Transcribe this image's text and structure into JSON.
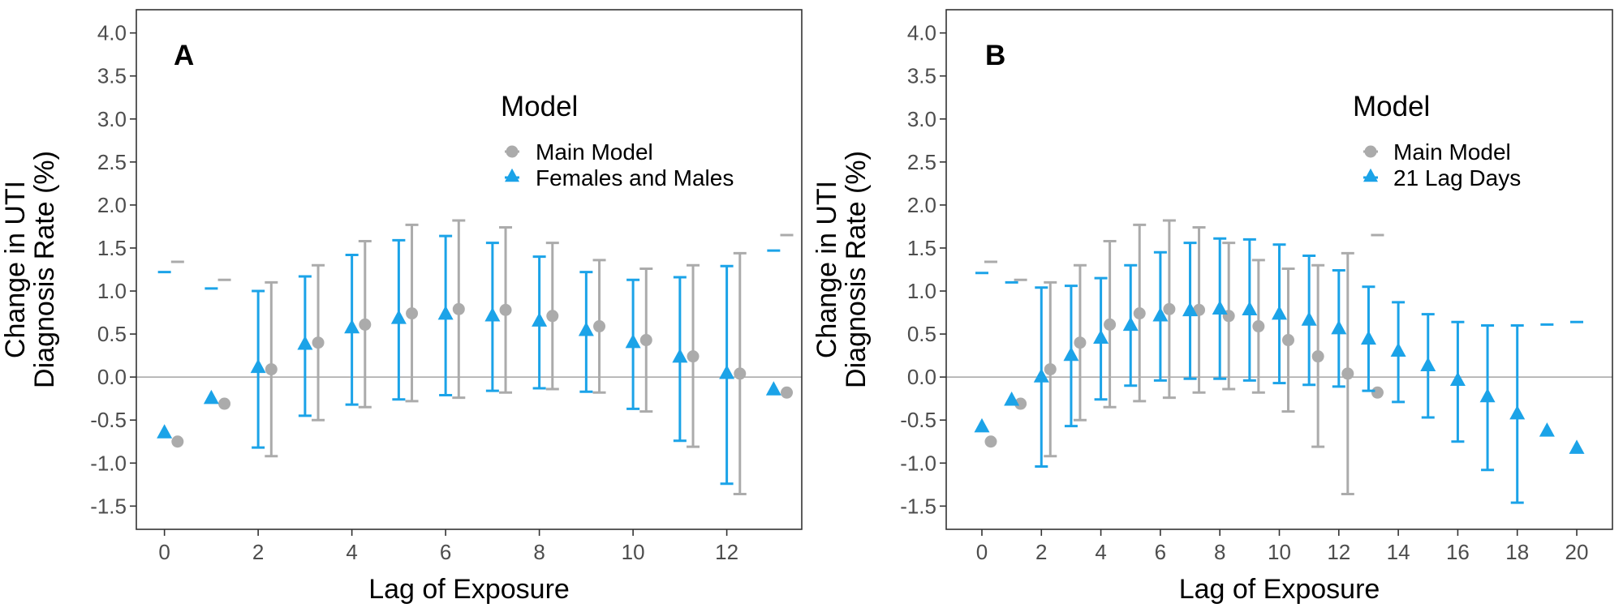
{
  "colors": {
    "main": "#ababab",
    "alt": "#1ba3e8",
    "axis": "#333333",
    "zero_line": "#ababab",
    "text": "#000000",
    "tick_text": "#4d4d4d"
  },
  "chart_data": [
    {
      "type": "scatter",
      "panel_label": "A",
      "xlabel": "Lag of Exposure",
      "ylabel": [
        "Change in UTI",
        "Diagnosis Rate (%)"
      ],
      "xlim": [
        -0.6,
        13.6
      ],
      "ylim": [
        -1.77,
        4.27
      ],
      "x_ticks": [
        0,
        2,
        4,
        6,
        8,
        10,
        12
      ],
      "y_ticks": [
        -1.5,
        -1.0,
        -0.5,
        0.0,
        0.5,
        1.0,
        1.5,
        2.0,
        2.5,
        3.0,
        3.5,
        4.0
      ],
      "y_tick_labels": [
        "-1.5",
        "-1.0",
        "-0.5",
        "0.0",
        "0.5",
        "1.0",
        "1.5",
        "2.0",
        "2.5",
        "3.0",
        "3.5",
        "4.0"
      ],
      "grid": false,
      "zero_line": true,
      "legend": {
        "title": "Model",
        "placement": "top-right",
        "entries": [
          "Main Model",
          "Females and Males"
        ]
      },
      "series": [
        {
          "name": "Main Model",
          "marker": "circle",
          "offset": 0.28,
          "x": [
            0,
            1,
            2,
            3,
            4,
            5,
            6,
            7,
            8,
            9,
            10,
            11,
            12,
            13
          ],
          "y": [
            -0.75,
            -0.31,
            0.09,
            0.4,
            0.61,
            0.74,
            0.79,
            0.78,
            0.71,
            0.59,
            0.43,
            0.24,
            0.04,
            -0.18
          ],
          "lower": [
            1.34,
            1.13,
            -0.92,
            -0.5,
            -0.35,
            -0.28,
            -0.24,
            -0.18,
            -0.14,
            -0.18,
            -0.4,
            -0.81,
            -1.36,
            1.65
          ],
          "upper": [
            1.34,
            1.13,
            1.1,
            1.3,
            1.58,
            1.77,
            1.82,
            1.74,
            1.56,
            1.36,
            1.26,
            1.3,
            1.44,
            1.65
          ]
        },
        {
          "name": "Females and Males",
          "marker": "triangle",
          "offset": 0.0,
          "x": [
            0,
            1,
            2,
            3,
            4,
            5,
            6,
            7,
            8,
            9,
            10,
            11,
            12,
            13
          ],
          "y": [
            -0.65,
            -0.25,
            0.11,
            0.38,
            0.57,
            0.68,
            0.73,
            0.71,
            0.65,
            0.54,
            0.4,
            0.23,
            0.04,
            -0.15
          ],
          "lower": [
            1.22,
            1.03,
            -0.82,
            -0.45,
            -0.32,
            -0.26,
            -0.21,
            -0.16,
            -0.13,
            -0.17,
            -0.37,
            -0.74,
            -1.24,
            1.47
          ],
          "upper": [
            1.22,
            1.03,
            1.0,
            1.17,
            1.42,
            1.59,
            1.64,
            1.56,
            1.4,
            1.22,
            1.13,
            1.16,
            1.29,
            1.47
          ]
        }
      ]
    },
    {
      "type": "scatter",
      "panel_label": "B",
      "xlabel": "Lag of Exposure",
      "ylabel": [
        "Change in UTI",
        "Diagnosis Rate (%)"
      ],
      "xlim": [
        -1.2,
        21.2
      ],
      "ylim": [
        -1.77,
        4.27
      ],
      "x_ticks": [
        0,
        2,
        4,
        6,
        8,
        10,
        12,
        14,
        16,
        18,
        20
      ],
      "y_ticks": [
        -1.5,
        -1.0,
        -0.5,
        0.0,
        0.5,
        1.0,
        1.5,
        2.0,
        2.5,
        3.0,
        3.5,
        4.0
      ],
      "y_tick_labels": [
        "-1.5",
        "-1.0",
        "-0.5",
        "0.0",
        "0.5",
        "1.0",
        "1.5",
        "2.0",
        "2.5",
        "3.0",
        "3.5",
        "4.0"
      ],
      "grid": false,
      "zero_line": true,
      "legend": {
        "title": "Model",
        "placement": "top-right",
        "entries": [
          "Main Model",
          "21 Lag Days"
        ]
      },
      "series": [
        {
          "name": "Main Model",
          "marker": "circle",
          "offset": 0.3,
          "x": [
            0,
            1,
            2,
            3,
            4,
            5,
            6,
            7,
            8,
            9,
            10,
            11,
            12,
            13
          ],
          "y": [
            -0.75,
            -0.31,
            0.09,
            0.4,
            0.61,
            0.74,
            0.79,
            0.78,
            0.71,
            0.59,
            0.43,
            0.24,
            0.04,
            -0.18
          ],
          "lower": [
            1.34,
            1.13,
            -0.92,
            -0.5,
            -0.35,
            -0.28,
            -0.24,
            -0.18,
            -0.14,
            -0.18,
            -0.4,
            -0.81,
            -1.36,
            1.65
          ],
          "upper": [
            1.34,
            1.13,
            1.1,
            1.3,
            1.58,
            1.77,
            1.82,
            1.74,
            1.56,
            1.36,
            1.26,
            1.3,
            1.44,
            1.65
          ]
        },
        {
          "name": "21 Lag Days",
          "marker": "triangle",
          "offset": 0.0,
          "x": [
            0,
            1,
            2,
            3,
            4,
            5,
            6,
            7,
            8,
            9,
            10,
            11,
            12,
            13,
            14,
            15,
            16,
            17,
            18,
            19,
            20
          ],
          "y": [
            -0.58,
            -0.27,
            0.0,
            0.25,
            0.45,
            0.6,
            0.71,
            0.77,
            0.79,
            0.78,
            0.73,
            0.66,
            0.56,
            0.44,
            0.3,
            0.13,
            -0.04,
            -0.23,
            -0.43,
            -0.63,
            -0.83
          ],
          "lower": [
            1.21,
            1.1,
            -1.04,
            -0.57,
            -0.26,
            -0.1,
            -0.04,
            -0.02,
            -0.02,
            -0.04,
            -0.07,
            -0.09,
            -0.11,
            -0.16,
            -0.29,
            -0.47,
            -0.75,
            -1.08,
            -1.46,
            0.61,
            0.64
          ],
          "upper": [
            1.21,
            1.1,
            1.04,
            1.06,
            1.15,
            1.3,
            1.45,
            1.56,
            1.61,
            1.6,
            1.54,
            1.41,
            1.24,
            1.05,
            0.87,
            0.73,
            0.64,
            0.6,
            0.6,
            0.61,
            0.64
          ]
        }
      ]
    }
  ]
}
